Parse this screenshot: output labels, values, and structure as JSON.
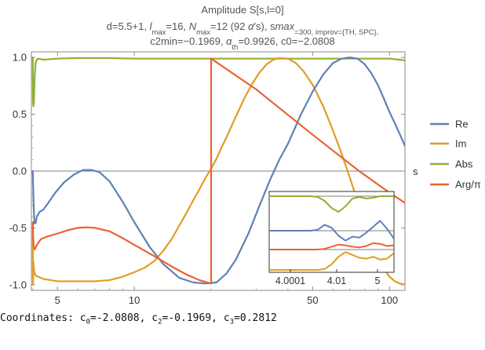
{
  "chart_data": {
    "type": "line",
    "title_lines": [
      "Amplitude S[s,l=0]",
      "d=5.5+1, l_max=16, N_max=12 (92 α's), s_max=300, improv={TH, SPC},",
      "c2min=−0.1969, α_th=0.9926, c0=−2.0808"
    ],
    "title": {
      "line1": "Amplitude S[s,l=0]",
      "line2_parts": [
        "d=5.5+1, ",
        "l",
        "max",
        "=16, ",
        "N",
        "max",
        "=12 (92 ",
        "α",
        "'s), ",
        "s",
        "max",
        "=300, improv={TH, SPC},"
      ],
      "line3_parts": [
        "c2min=−0.1969, ",
        "α",
        "th",
        "=0.9926, c0=−2.0808"
      ]
    },
    "xlabel": "s",
    "ylabel": "",
    "x_scale": "log",
    "xlim": [
      3.95,
      115
    ],
    "ylim": [
      -1.05,
      1.05
    ],
    "x_ticks": [
      5,
      10,
      50,
      100
    ],
    "x_tick_labels": [
      "5",
      "10",
      "50",
      "100"
    ],
    "y_ticks": [
      -1.0,
      -0.5,
      0.0,
      0.5,
      1.0
    ],
    "y_tick_labels": [
      "-1.0",
      "-0.5",
      "0.0",
      "0.5",
      "1.0"
    ],
    "legend_position": "right",
    "series": [
      {
        "name": "Re",
        "color": "#5E81B5",
        "x": [
          4.0001,
          4.01,
          4.03,
          4.06,
          4.1,
          4.15,
          4.25,
          4.4,
          4.6,
          4.9,
          5.3,
          5.8,
          6.3,
          6.8,
          7.3,
          8,
          9,
          10,
          11.5,
          13,
          15,
          17,
          19,
          21,
          23,
          25,
          28,
          31,
          34,
          37,
          40,
          45,
          50,
          55,
          60,
          65,
          70,
          75,
          80,
          85,
          90,
          95,
          100,
          105,
          110,
          115
        ],
        "y": [
          -0.0,
          -0.1,
          -0.3,
          -0.46,
          -0.46,
          -0.4,
          -0.36,
          -0.34,
          -0.28,
          -0.19,
          -0.1,
          -0.03,
          0.01,
          0.01,
          -0.01,
          -0.09,
          -0.27,
          -0.45,
          -0.67,
          -0.82,
          -0.94,
          -0.98,
          -0.99,
          -0.98,
          -0.9,
          -0.78,
          -0.55,
          -0.3,
          -0.08,
          0.1,
          0.24,
          0.5,
          0.7,
          0.85,
          0.95,
          0.99,
          1.0,
          0.99,
          0.94,
          0.86,
          0.76,
          0.64,
          0.52,
          0.42,
          0.32,
          0.22
        ]
      },
      {
        "name": "Im",
        "color": "#E19C24",
        "x": [
          4.0001,
          4.005,
          4.01,
          4.02,
          4.05,
          4.1,
          4.2,
          4.4,
          4.7,
          5,
          6,
          7,
          8,
          9,
          10,
          11,
          12,
          13,
          14,
          15,
          16,
          17,
          18,
          19,
          20,
          21,
          22,
          23,
          25,
          27,
          29,
          31,
          33,
          35,
          37,
          40,
          43,
          46,
          50,
          55,
          60,
          65,
          70,
          75,
          80,
          85,
          90,
          95,
          100,
          105,
          110,
          115
        ],
        "y": [
          -0.45,
          -0.9,
          -1.0,
          -0.8,
          -0.88,
          -0.92,
          -0.93,
          -0.95,
          -0.96,
          -0.97,
          -0.97,
          -0.97,
          -0.96,
          -0.93,
          -0.89,
          -0.85,
          -0.79,
          -0.7,
          -0.6,
          -0.48,
          -0.37,
          -0.26,
          -0.16,
          -0.06,
          0.02,
          0.11,
          0.21,
          0.3,
          0.48,
          0.64,
          0.77,
          0.87,
          0.94,
          0.98,
          0.995,
          0.99,
          0.95,
          0.88,
          0.76,
          0.57,
          0.36,
          0.15,
          -0.06,
          -0.27,
          -0.46,
          -0.63,
          -0.76,
          -0.86,
          -0.93,
          -0.97,
          -0.99,
          -1.0
        ]
      },
      {
        "name": "Abs",
        "color": "#8FB032",
        "x": [
          4.0001,
          4.005,
          4.01,
          4.02,
          4.04,
          4.06,
          4.1,
          4.15,
          4.2,
          4.4,
          5,
          6,
          8,
          10,
          15,
          20,
          30,
          40,
          50,
          60,
          70,
          80,
          90,
          100,
          110,
          115
        ],
        "y": [
          1.0,
          0.8,
          0.62,
          0.57,
          0.6,
          0.78,
          0.95,
          0.98,
          0.99,
          0.98,
          0.99,
          0.995,
          0.995,
          0.99,
          0.99,
          0.99,
          0.99,
          0.99,
          0.99,
          0.99,
          0.99,
          0.99,
          0.99,
          0.99,
          0.98,
          0.975
        ]
      },
      {
        "name": "Arg/π",
        "color": "#EB6235",
        "x": [
          4.0001,
          4.005,
          4.01,
          4.03,
          4.07,
          4.15,
          4.3,
          4.5,
          5,
          5.5,
          6,
          6.5,
          7,
          8,
          9,
          10,
          12,
          14,
          16,
          18,
          20,
          20.0001,
          30,
          50,
          75,
          100,
          115
        ],
        "y": [
          -0.47,
          -0.45,
          -0.55,
          -0.66,
          -0.69,
          -0.65,
          -0.6,
          -0.58,
          -0.55,
          -0.52,
          -0.5,
          -0.495,
          -0.5,
          -0.53,
          -0.59,
          -0.65,
          -0.75,
          -0.84,
          -0.91,
          -0.96,
          -0.99,
          0.99,
          0.72,
          0.32,
          0.01,
          -0.19,
          -0.28
        ]
      }
    ],
    "inset": {
      "x_ticks": [
        4.0001,
        4.01,
        5
      ],
      "x_tick_labels": [
        "4.0001",
        "4.01",
        "5"
      ],
      "series": [
        {
          "name": "Abs",
          "color": "#8FB032",
          "y": [
            0.0,
            0.0,
            0.0,
            0.0,
            0.0,
            0.0,
            0.0,
            0.05,
            0.3,
            0.75,
            1.0,
            0.65,
            0.15,
            0.05,
            0.15,
            0.1,
            0.0,
            0.0,
            0.0
          ]
        },
        {
          "name": "Re",
          "color": "#5E81B5",
          "y": [
            0.0,
            0.0,
            0.0,
            0.0,
            0.0,
            0.0,
            0.0,
            -0.1,
            -0.6,
            -0.3,
            0.5,
            1.0,
            0.6,
            0.7,
            0.2,
            -0.4,
            -1.0,
            -0.2,
            0.8
          ]
        },
        {
          "name": "Arg/π",
          "color": "#EB6235",
          "y": [
            0.0,
            0.0,
            0.0,
            0.0,
            0.0,
            0.0,
            0.0,
            0.0,
            0.05,
            0.2,
            0.35,
            0.3,
            0.2,
            0.15,
            0.25,
            0.45,
            0.4,
            0.25,
            0.3
          ]
        },
        {
          "name": "Im",
          "color": "#E19C24",
          "y": [
            0.0,
            0.0,
            0.0,
            0.0,
            0.0,
            0.0,
            0.0,
            0.0,
            0.05,
            0.3,
            0.7,
            0.95,
            0.8,
            0.65,
            0.6,
            0.7,
            0.55,
            0.6,
            0.9
          ]
        }
      ]
    }
  },
  "coordinates": {
    "prefix": "Coordinates: ",
    "items": [
      {
        "sym": "c",
        "sub": "0",
        "val": "=-2.0808"
      },
      {
        "sym": "c",
        "sub": "2",
        "val": "=-0.1969"
      },
      {
        "sym": "c",
        "sub": "3",
        "val": "=0.2812"
      }
    ]
  }
}
